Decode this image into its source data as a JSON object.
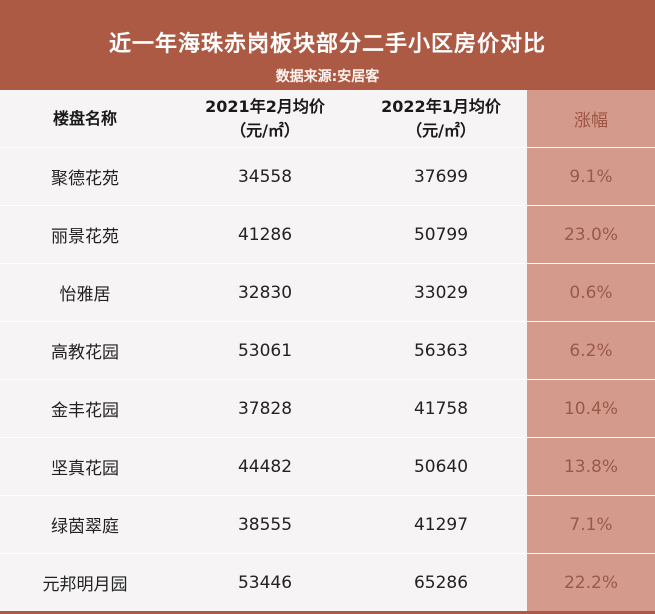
{
  "header": {
    "title": "近一年海珠赤岗板块部分二手小区房价对比",
    "subtitle": "数据来源:安居客"
  },
  "columns": {
    "name": "楼盘名称",
    "price_2021_line1": "2021年2月均价",
    "price_2021_line2": "（元/㎡）",
    "price_2022_line1": "2022年1月均价",
    "price_2022_line2": "（元/㎡）",
    "growth": "涨幅"
  },
  "rows": [
    {
      "name": "聚德花苑",
      "p2021": "34558",
      "p2022": "37699",
      "growth": "9.1%"
    },
    {
      "name": "丽景花苑",
      "p2021": "41286",
      "p2022": "50799",
      "growth": "23.0%"
    },
    {
      "name": "怡雅居",
      "p2021": "32830",
      "p2022": "33029",
      "growth": "0.6%"
    },
    {
      "name": "高教花园",
      "p2021": "53061",
      "p2022": "56363",
      "growth": "6.2%"
    },
    {
      "name": "金丰花园",
      "p2021": "37828",
      "p2022": "41758",
      "growth": "10.4%"
    },
    {
      "name": "坚真花园",
      "p2021": "44482",
      "p2022": "50640",
      "growth": "13.8%"
    },
    {
      "name": "绿茵翠庭",
      "p2021": "38555",
      "p2022": "41297",
      "growth": "7.1%"
    },
    {
      "name": "元邦明月园",
      "p2021": "53446",
      "p2022": "65286",
      "growth": "22.2%"
    }
  ],
  "colors": {
    "header_bg": "#ad5a45",
    "growth_col_bg": "#d49a8b",
    "body_bg": "#f6f4f4"
  }
}
